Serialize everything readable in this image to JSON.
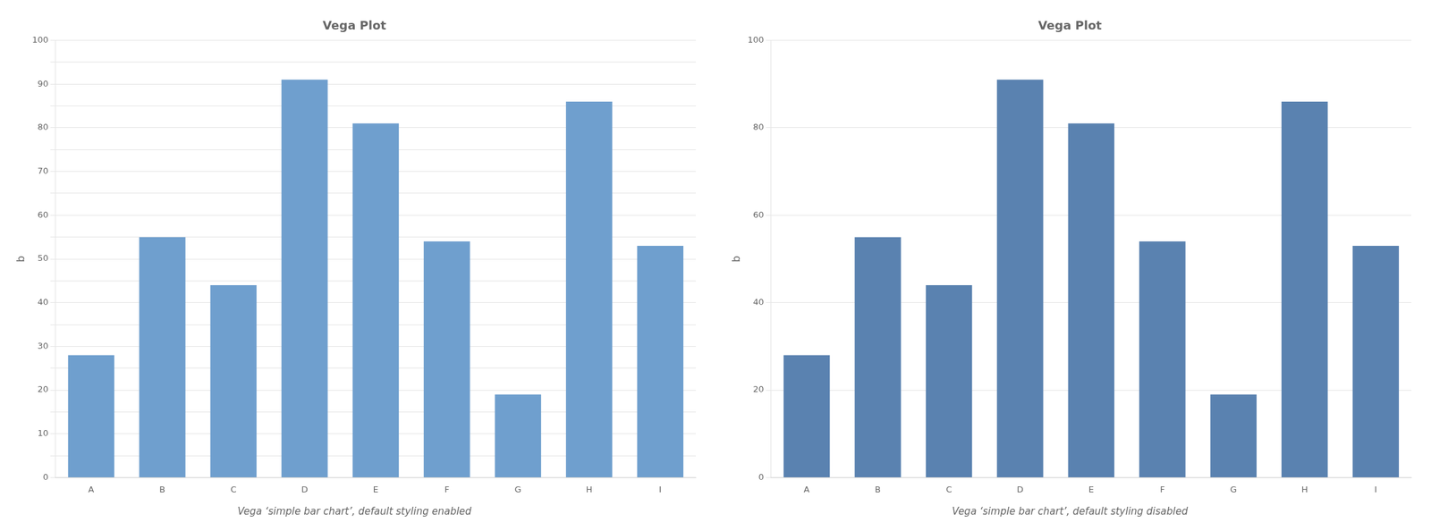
{
  "chart_data": [
    {
      "type": "bar",
      "title": "Vega Plot",
      "subtitle": "Vega ‘simple bar chart’, default styling enabled",
      "categories": [
        "A",
        "B",
        "C",
        "D",
        "E",
        "F",
        "G",
        "H",
        "I"
      ],
      "values": [
        28,
        55,
        44,
        91,
        81,
        54,
        19,
        86,
        53
      ],
      "color": "#6f9fce",
      "ylabel": "b",
      "ylim": [
        0,
        100
      ],
      "yticks": [
        0,
        {
          "value": 5,
          "label": null
        },
        10,
        {
          "value": 15,
          "label": null
        },
        20,
        {
          "value": 25,
          "label": null
        },
        30,
        {
          "value": 35,
          "label": null
        },
        40,
        {
          "value": 45,
          "label": null
        },
        50,
        {
          "value": 55,
          "label": null
        },
        60,
        {
          "value": 65,
          "label": null
        },
        70,
        {
          "value": 75,
          "label": null
        },
        80,
        {
          "value": 85,
          "label": null
        },
        90,
        {
          "value": 95,
          "label": null
        },
        100
      ],
      "grid": true
    },
    {
      "type": "bar",
      "title": "Vega Plot",
      "subtitle": "Vega ‘simple bar chart’, default styling disabled",
      "categories": [
        "A",
        "B",
        "C",
        "D",
        "E",
        "F",
        "G",
        "H",
        "I"
      ],
      "values": [
        28,
        55,
        44,
        91,
        81,
        54,
        19,
        86,
        53
      ],
      "color": "#5a82b0",
      "ylabel": "b",
      "ylim": [
        0,
        100
      ],
      "yticks": [
        0,
        20,
        40,
        60,
        80,
        100
      ],
      "grid": true
    }
  ]
}
